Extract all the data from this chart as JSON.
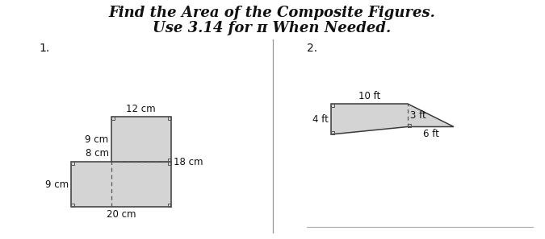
{
  "title_line1": "Find the Area of the Composite Figures.",
  "title_line2": "Use 3.14 for π When Needed.",
  "bg_color": "#ffffff",
  "fig1_label": "1.",
  "fig2_label": "2.",
  "shape_fill": "#d4d4d4",
  "shape_edge": "#3a3a3a",
  "dash_color": "#555555",
  "label_color": "#111111",
  "divider_color": "#999999",
  "answer_line_color": "#aaaaaa"
}
